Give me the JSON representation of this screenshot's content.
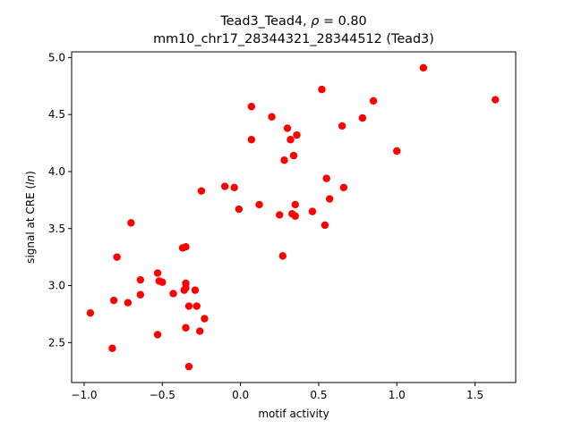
{
  "chart_data": {
    "type": "scatter",
    "title_line1_prefix": "Tead3_Tead4, ",
    "title_rho_symbol": "ρ",
    "title_rho_value": " = 0.80",
    "title_line2": "mm10_chr17_28344321_28344512 (Tead3)",
    "xlabel": "motif activity",
    "ylabel_prefix": "signal at CRE (",
    "ylabel_italic": "ln",
    "ylabel_suffix": ")",
    "xlim": [
      -1.08,
      1.76
    ],
    "ylim": [
      2.15,
      5.05
    ],
    "xticks": [
      -1.0,
      -0.5,
      0.0,
      0.5,
      1.0,
      1.5
    ],
    "xtick_labels": [
      "−1.0",
      "−0.5",
      "0.0",
      "0.5",
      "1.0",
      "1.5"
    ],
    "yticks": [
      2.5,
      3.0,
      3.5,
      4.0,
      4.5,
      5.0
    ],
    "ytick_labels": [
      "2.5",
      "3.0",
      "3.5",
      "4.0",
      "4.5",
      "5.0"
    ],
    "grid": false,
    "marker_color": "#ff0000",
    "series": [
      {
        "points": [
          [
            -0.96,
            2.76
          ],
          [
            -0.82,
            2.45
          ],
          [
            -0.81,
            2.87
          ],
          [
            -0.79,
            3.25
          ],
          [
            -0.72,
            2.85
          ],
          [
            -0.7,
            3.55
          ],
          [
            -0.64,
            3.05
          ],
          [
            -0.64,
            2.92
          ],
          [
            -0.53,
            3.11
          ],
          [
            -0.53,
            2.57
          ],
          [
            -0.52,
            3.04
          ],
          [
            -0.5,
            3.03
          ],
          [
            -0.43,
            2.93
          ],
          [
            -0.37,
            3.33
          ],
          [
            -0.36,
            2.96
          ],
          [
            -0.35,
            3.34
          ],
          [
            -0.35,
            2.98
          ],
          [
            -0.35,
            3.02
          ],
          [
            -0.35,
            2.63
          ],
          [
            -0.33,
            2.82
          ],
          [
            -0.33,
            2.29
          ],
          [
            -0.29,
            2.96
          ],
          [
            -0.28,
            2.82
          ],
          [
            -0.26,
            2.6
          ],
          [
            -0.25,
            3.83
          ],
          [
            -0.23,
            2.71
          ],
          [
            -0.1,
            3.87
          ],
          [
            -0.04,
            3.86
          ],
          [
            -0.01,
            3.67
          ],
          [
            0.07,
            4.57
          ],
          [
            0.07,
            4.28
          ],
          [
            0.12,
            3.71
          ],
          [
            0.2,
            4.48
          ],
          [
            0.25,
            3.62
          ],
          [
            0.27,
            3.26
          ],
          [
            0.28,
            4.1
          ],
          [
            0.3,
            4.38
          ],
          [
            0.32,
            4.28
          ],
          [
            0.33,
            3.63
          ],
          [
            0.34,
            4.14
          ],
          [
            0.35,
            3.71
          ],
          [
            0.35,
            3.61
          ],
          [
            0.36,
            4.32
          ],
          [
            0.46,
            3.65
          ],
          [
            0.52,
            4.72
          ],
          [
            0.54,
            3.53
          ],
          [
            0.55,
            3.94
          ],
          [
            0.57,
            3.76
          ],
          [
            0.65,
            4.4
          ],
          [
            0.66,
            3.86
          ],
          [
            0.78,
            4.47
          ],
          [
            0.85,
            4.62
          ],
          [
            1.0,
            4.18
          ],
          [
            1.17,
            4.91
          ],
          [
            1.63,
            4.63
          ]
        ]
      }
    ]
  }
}
